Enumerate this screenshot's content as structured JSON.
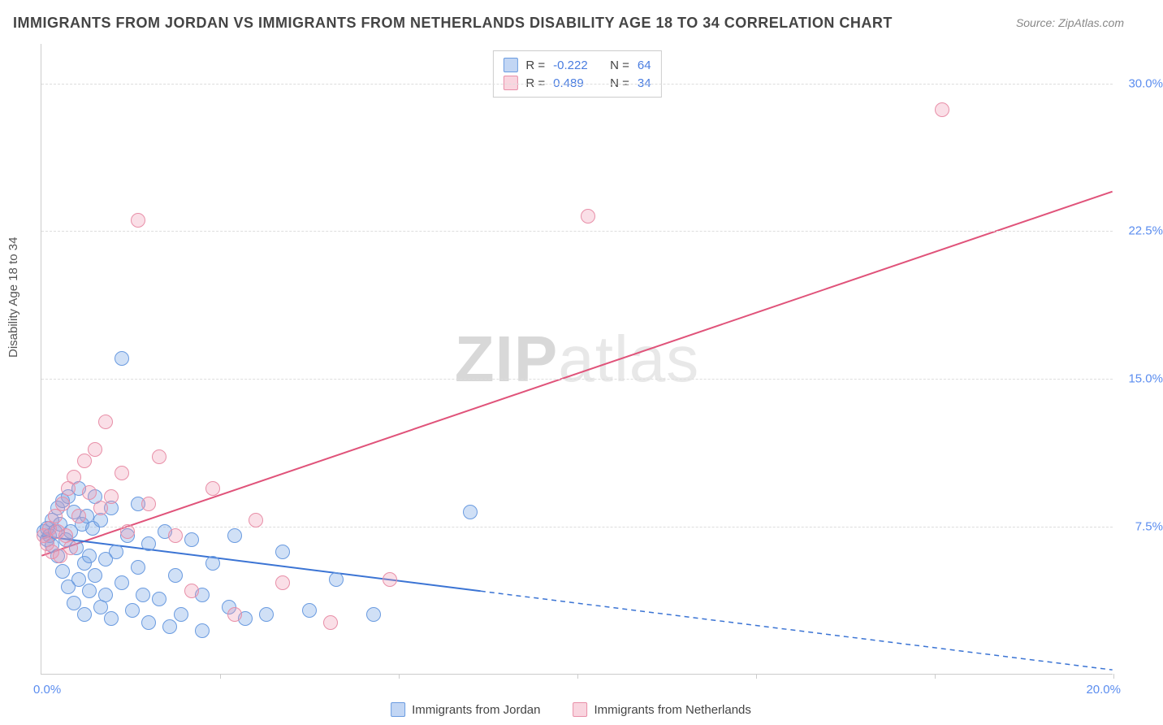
{
  "title": "IMMIGRANTS FROM JORDAN VS IMMIGRANTS FROM NETHERLANDS DISABILITY AGE 18 TO 34 CORRELATION CHART",
  "source": "Source: ZipAtlas.com",
  "yaxis_label": "Disability Age 18 to 34",
  "watermark_a": "ZIP",
  "watermark_b": "atlas",
  "chart": {
    "type": "scatter",
    "xlim": [
      0,
      20
    ],
    "ylim": [
      0,
      32
    ],
    "xticks_labeled": {
      "left": "0.0%",
      "right": "20.0%"
    },
    "xtick_marks": [
      3.33,
      6.67,
      10.0,
      13.33,
      16.67,
      20.0
    ],
    "ygrid": [
      {
        "v": 7.5,
        "label": "7.5%"
      },
      {
        "v": 15.0,
        "label": "15.0%"
      },
      {
        "v": 22.5,
        "label": "22.5%"
      },
      {
        "v": 30.0,
        "label": "30.0%"
      }
    ],
    "background_color": "#ffffff",
    "grid_color": "#dddddd",
    "axis_color": "#cccccc",
    "tick_label_color": "#5b8def",
    "series": [
      {
        "name": "Immigrants from Jordan",
        "color_fill": "rgba(120,165,230,0.35)",
        "color_stroke": "#6a9be0",
        "marker_radius": 9,
        "r": "-0.222",
        "n": "64",
        "trend": {
          "x1": 0,
          "y1": 7.0,
          "x2_solid": 8.2,
          "y2_solid": 4.2,
          "x2_dash": 20,
          "y2_dash": 0.2,
          "color": "#3b74d4",
          "width": 2
        },
        "points": [
          [
            0.05,
            7.2
          ],
          [
            0.1,
            6.8
          ],
          [
            0.1,
            7.4
          ],
          [
            0.15,
            7.0
          ],
          [
            0.2,
            6.5
          ],
          [
            0.2,
            7.8
          ],
          [
            0.25,
            7.2
          ],
          [
            0.3,
            6.0
          ],
          [
            0.3,
            8.4
          ],
          [
            0.35,
            7.6
          ],
          [
            0.4,
            5.2
          ],
          [
            0.4,
            8.8
          ],
          [
            0.45,
            6.8
          ],
          [
            0.5,
            4.4
          ],
          [
            0.5,
            9.0
          ],
          [
            0.55,
            7.2
          ],
          [
            0.6,
            3.6
          ],
          [
            0.6,
            8.2
          ],
          [
            0.65,
            6.4
          ],
          [
            0.7,
            4.8
          ],
          [
            0.7,
            9.4
          ],
          [
            0.75,
            7.6
          ],
          [
            0.8,
            5.6
          ],
          [
            0.8,
            3.0
          ],
          [
            0.85,
            8.0
          ],
          [
            0.9,
            6.0
          ],
          [
            0.9,
            4.2
          ],
          [
            0.95,
            7.4
          ],
          [
            1.0,
            5.0
          ],
          [
            1.0,
            9.0
          ],
          [
            1.1,
            3.4
          ],
          [
            1.1,
            7.8
          ],
          [
            1.2,
            5.8
          ],
          [
            1.2,
            4.0
          ],
          [
            1.3,
            8.4
          ],
          [
            1.3,
            2.8
          ],
          [
            1.4,
            6.2
          ],
          [
            1.5,
            4.6
          ],
          [
            1.5,
            16.0
          ],
          [
            1.6,
            7.0
          ],
          [
            1.7,
            3.2
          ],
          [
            1.8,
            5.4
          ],
          [
            1.8,
            8.6
          ],
          [
            1.9,
            4.0
          ],
          [
            2.0,
            6.6
          ],
          [
            2.0,
            2.6
          ],
          [
            2.2,
            3.8
          ],
          [
            2.3,
            7.2
          ],
          [
            2.4,
            2.4
          ],
          [
            2.5,
            5.0
          ],
          [
            2.6,
            3.0
          ],
          [
            2.8,
            6.8
          ],
          [
            3.0,
            4.0
          ],
          [
            3.0,
            2.2
          ],
          [
            3.2,
            5.6
          ],
          [
            3.5,
            3.4
          ],
          [
            3.6,
            7.0
          ],
          [
            3.8,
            2.8
          ],
          [
            4.2,
            3.0
          ],
          [
            4.5,
            6.2
          ],
          [
            5.0,
            3.2
          ],
          [
            5.5,
            4.8
          ],
          [
            6.2,
            3.0
          ],
          [
            8.0,
            8.2
          ]
        ]
      },
      {
        "name": "Immigrants from Netherlands",
        "color_fill": "rgba(240,150,175,0.3)",
        "color_stroke": "#e88fa8",
        "marker_radius": 9,
        "r": "0.489",
        "n": "34",
        "trend": {
          "x1": 0,
          "y1": 6.0,
          "x2_solid": 20,
          "y2_solid": 24.5,
          "color": "#e0537a",
          "width": 2
        },
        "points": [
          [
            0.05,
            7.0
          ],
          [
            0.1,
            6.6
          ],
          [
            0.15,
            7.4
          ],
          [
            0.2,
            6.2
          ],
          [
            0.25,
            8.0
          ],
          [
            0.3,
            7.2
          ],
          [
            0.35,
            6.0
          ],
          [
            0.4,
            8.6
          ],
          [
            0.45,
            7.0
          ],
          [
            0.5,
            9.4
          ],
          [
            0.55,
            6.4
          ],
          [
            0.6,
            10.0
          ],
          [
            0.7,
            8.0
          ],
          [
            0.8,
            10.8
          ],
          [
            0.9,
            9.2
          ],
          [
            1.0,
            11.4
          ],
          [
            1.1,
            8.4
          ],
          [
            1.2,
            12.8
          ],
          [
            1.3,
            9.0
          ],
          [
            1.5,
            10.2
          ],
          [
            1.6,
            7.2
          ],
          [
            1.8,
            23.0
          ],
          [
            2.0,
            8.6
          ],
          [
            2.2,
            11.0
          ],
          [
            2.5,
            7.0
          ],
          [
            2.8,
            4.2
          ],
          [
            3.2,
            9.4
          ],
          [
            3.6,
            3.0
          ],
          [
            4.0,
            7.8
          ],
          [
            4.5,
            4.6
          ],
          [
            5.4,
            2.6
          ],
          [
            6.5,
            4.8
          ],
          [
            10.2,
            23.2
          ],
          [
            16.8,
            28.6
          ]
        ]
      }
    ]
  },
  "legend_bottom": [
    {
      "swatch": "blue",
      "label": "Immigrants from Jordan"
    },
    {
      "swatch": "pink",
      "label": "Immigrants from Netherlands"
    }
  ]
}
